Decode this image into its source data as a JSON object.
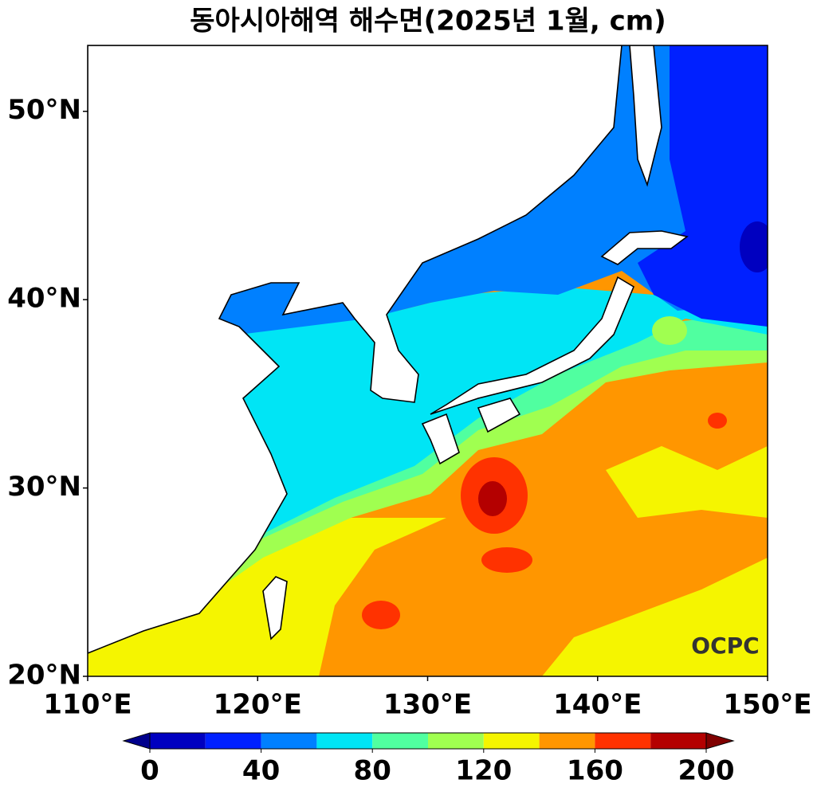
{
  "chart_data": {
    "type": "contour-map",
    "title": "동아시아해역 해수면(2025년 1월, cm)",
    "xlim": [
      110,
      150
    ],
    "ylim": [
      20,
      53.5
    ],
    "xticks": [
      {
        "value": 110,
        "label": "110°E"
      },
      {
        "value": 120,
        "label": "120°E"
      },
      {
        "value": 130,
        "label": "130°E"
      },
      {
        "value": 140,
        "label": "140°E"
      },
      {
        "value": 150,
        "label": "150°E"
      }
    ],
    "yticks": [
      {
        "value": 20,
        "label": "20°N"
      },
      {
        "value": 30,
        "label": "30°N"
      },
      {
        "value": 40,
        "label": "40°N"
      },
      {
        "value": 50,
        "label": "50°N"
      }
    ],
    "colorbar": {
      "levels": [
        0,
        20,
        40,
        60,
        80,
        100,
        120,
        140,
        160,
        180,
        200
      ],
      "colors": [
        "#0000c0",
        "#0020ff",
        "#0080ff",
        "#00e5f5",
        "#50ffa0",
        "#a0ff50",
        "#f5f500",
        "#ff9600",
        "#ff3200",
        "#b40000"
      ],
      "under_color": "#00008c",
      "over_color": "#800000",
      "ticks": [
        0,
        40,
        80,
        120,
        160,
        200
      ]
    },
    "watermark": "OCPC"
  }
}
